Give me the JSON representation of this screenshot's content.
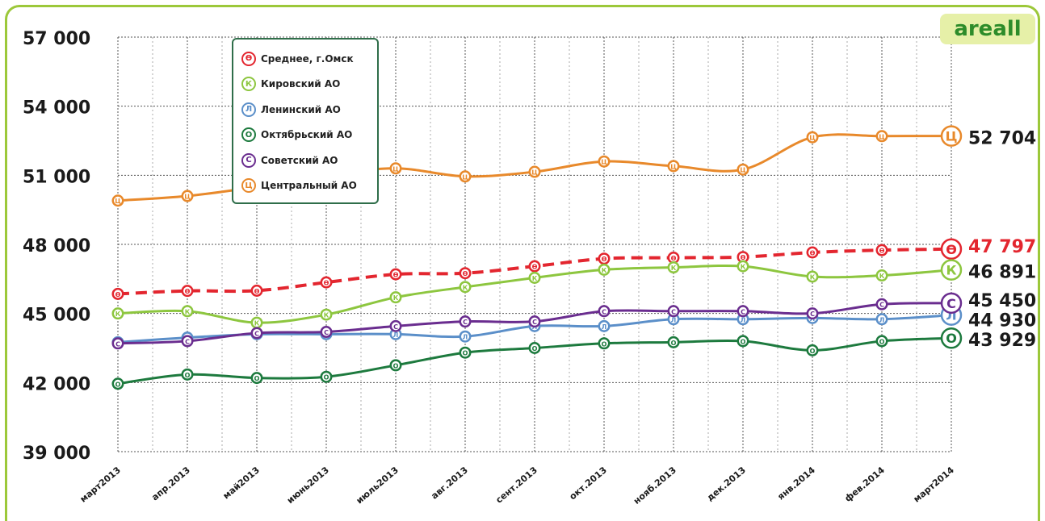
{
  "brand": "areall",
  "chart_data": {
    "type": "line",
    "categories": [
      "март2013",
      "апр.2013",
      "май2013",
      "июнь2013",
      "июль2013",
      "авг.2013",
      "сент.2013",
      "окт.2013",
      "нояб.2013",
      "дек.2013",
      "янв.2014",
      "фев.2014",
      "март2014"
    ],
    "y_ticks": [
      "39 000",
      "42 000",
      "45 000",
      "48 000",
      "51 000",
      "54 000",
      "57 000"
    ],
    "ylim": [
      39000,
      57000
    ],
    "grid": true,
    "legend_position": "top-left",
    "series": [
      {
        "name": "Среднее, г.Омск",
        "letter": "Ѳ",
        "color": "#e3262f",
        "dashed": true,
        "end_label": "47 797",
        "values": [
          45850,
          45980,
          45990,
          46350,
          46700,
          46750,
          47050,
          47380,
          47420,
          47450,
          47650,
          47750,
          47797
        ]
      },
      {
        "name": "Кировский АО",
        "letter": "К",
        "color": "#8dc63f",
        "dashed": false,
        "end_label": "46 891",
        "values": [
          45000,
          45100,
          44600,
          44950,
          45700,
          46150,
          46550,
          46900,
          47000,
          47050,
          46600,
          46650,
          46891
        ]
      },
      {
        "name": "Ленинский АО",
        "letter": "Л",
        "color": "#5b8fc9",
        "dashed": false,
        "end_label": "44 930",
        "values": [
          43750,
          43950,
          44100,
          44100,
          44100,
          44000,
          44450,
          44450,
          44750,
          44750,
          44800,
          44750,
          44930
        ]
      },
      {
        "name": "Октябрьский АО",
        "letter": "О",
        "color": "#1d7a3e",
        "dashed": false,
        "end_label": "43 929",
        "values": [
          41950,
          42350,
          42200,
          42250,
          42750,
          43300,
          43500,
          43700,
          43750,
          43800,
          43400,
          43800,
          43929
        ]
      },
      {
        "name": "Советский АО",
        "letter": "С",
        "color": "#6a2d8f",
        "dashed": false,
        "end_label": "45 450",
        "values": [
          43700,
          43800,
          44150,
          44200,
          44450,
          44650,
          44650,
          45100,
          45100,
          45100,
          45000,
          45400,
          45450
        ]
      },
      {
        "name": "Центральный АО",
        "letter": "Ц",
        "color": "#e8892b",
        "dashed": false,
        "end_label": "52 704",
        "values": [
          49900,
          50100,
          50500,
          51000,
          51300,
          50950,
          51150,
          51600,
          51400,
          51250,
          52650,
          52700,
          52704
        ]
      }
    ]
  }
}
